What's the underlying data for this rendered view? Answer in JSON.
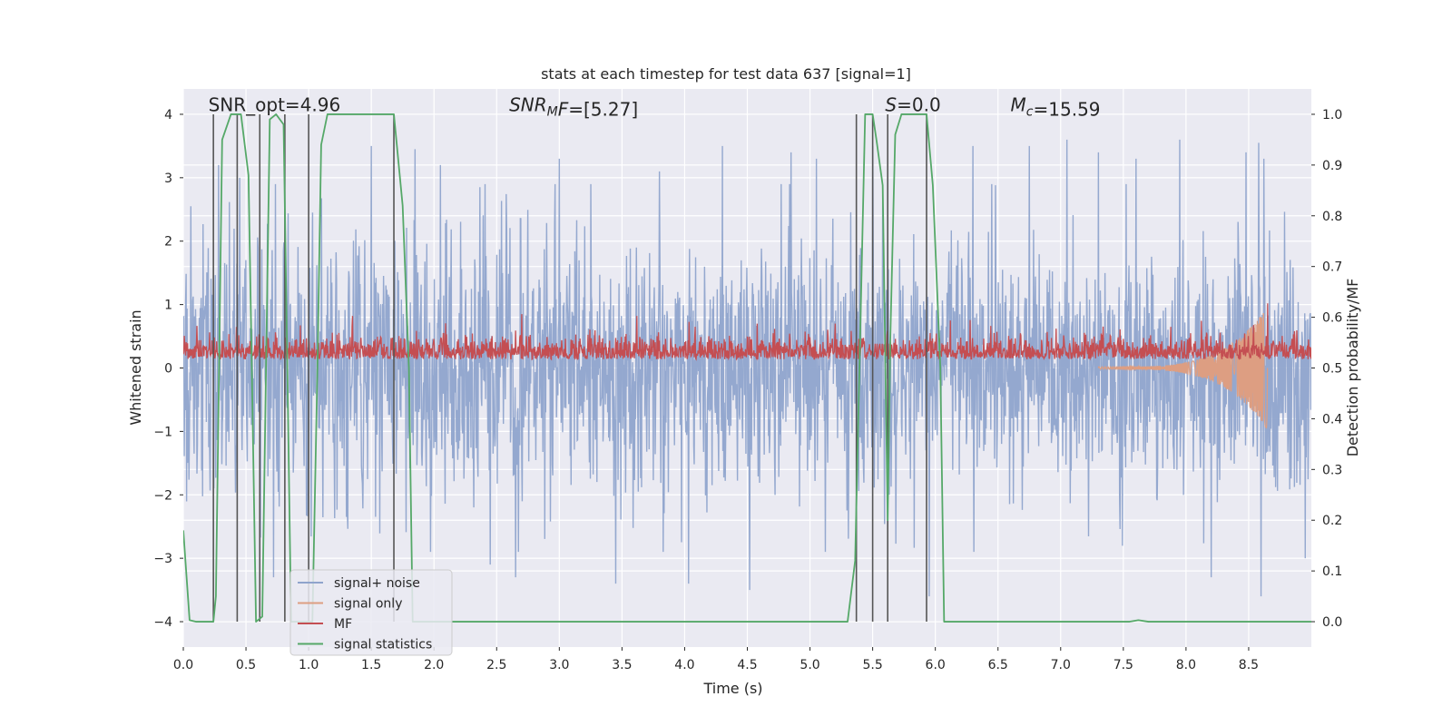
{
  "chart_data": {
    "type": "line",
    "title": "stats at each timestep for test data 637 [signal=1]",
    "xlabel": "Time (s)",
    "ylabel": "Whitened strain",
    "y2label": "Detection probability/MF",
    "xlim": [
      0.0,
      9.0
    ],
    "ylim": [
      -4.4,
      4.4
    ],
    "y2lim": [
      -0.05,
      1.05
    ],
    "xticks": [
      0.0,
      0.5,
      1.0,
      1.5,
      2.0,
      2.5,
      3.0,
      3.5,
      4.0,
      4.5,
      5.0,
      5.5,
      6.0,
      6.5,
      7.0,
      7.5,
      8.0,
      8.5
    ],
    "xtick_labels": [
      "0.0",
      "0.5",
      "1.0",
      "1.5",
      "2.0",
      "2.5",
      "3.0",
      "3.5",
      "4.0",
      "4.5",
      "5.0",
      "5.5",
      "6.0",
      "6.5",
      "7.0",
      "7.5",
      "8.0",
      "8.5"
    ],
    "yticks": [
      -4,
      -3,
      -2,
      -1,
      0,
      1,
      2,
      3,
      4
    ],
    "ytick_labels": [
      "−4",
      "−3",
      "−2",
      "−1",
      "0",
      "1",
      "2",
      "3",
      "4"
    ],
    "y2ticks": [
      0.0,
      0.1,
      0.2,
      0.3,
      0.4,
      0.5,
      0.6,
      0.7,
      0.8,
      0.9,
      1.0
    ],
    "y2tick_labels": [
      "0.0",
      "0.1",
      "0.2",
      "0.3",
      "0.4",
      "0.5",
      "0.6",
      "0.7",
      "0.8",
      "0.9",
      "1.0"
    ],
    "grid": true,
    "legend_position": "lower-left",
    "annotations": [
      {
        "text": "SNR_opt=4.96",
        "x": 0.2,
        "y": 4.05,
        "italic_prefix": ""
      },
      {
        "text": "=[5.27]",
        "x": 2.6,
        "y": 4.05,
        "italic_prefix": "SNR",
        "sub": "M",
        "italic_suffix": "F"
      },
      {
        "text": "=0.0",
        "x": 5.6,
        "y": 4.05,
        "italic_prefix": "S"
      },
      {
        "text": "=15.59",
        "x": 6.6,
        "y": 4.05,
        "italic_prefix": "M",
        "sub": "c"
      }
    ],
    "series": [
      {
        "name": "signal+ noise",
        "color": "#8fa4cc",
        "axis": "left",
        "kind": "noise",
        "sigma": 1.0,
        "peaks": [
          {
            "x": 0.06,
            "y": 2.55
          },
          {
            "x": 0.28,
            "y": 3.2
          },
          {
            "x": 0.45,
            "y": 3.0
          },
          {
            "x": 0.72,
            "y": -3.3
          },
          {
            "x": 1.03,
            "y": 2.45
          },
          {
            "x": 1.5,
            "y": 3.5
          },
          {
            "x": 1.85,
            "y": 3.45
          },
          {
            "x": 2.05,
            "y": 3.2
          },
          {
            "x": 2.45,
            "y": -3.1
          },
          {
            "x": 2.65,
            "y": -3.3
          },
          {
            "x": 3.0,
            "y": 3.3
          },
          {
            "x": 3.45,
            "y": -3.4
          },
          {
            "x": 3.8,
            "y": 3.1
          },
          {
            "x": 4.03,
            "y": -3.4
          },
          {
            "x": 4.3,
            "y": 3.5
          },
          {
            "x": 4.52,
            "y": -3.5
          },
          {
            "x": 4.85,
            "y": 3.4
          },
          {
            "x": 5.05,
            "y": 3.3
          },
          {
            "x": 5.5,
            "y": 3.5
          },
          {
            "x": 5.95,
            "y": -3.6
          },
          {
            "x": 6.3,
            "y": 3.5
          },
          {
            "x": 6.75,
            "y": 3.5
          },
          {
            "x": 7.05,
            "y": 3.6
          },
          {
            "x": 7.3,
            "y": 3.4
          },
          {
            "x": 7.6,
            "y": 3.3
          },
          {
            "x": 7.95,
            "y": 3.6
          },
          {
            "x": 8.2,
            "y": -3.3
          },
          {
            "x": 8.48,
            "y": 3.4
          },
          {
            "x": 8.58,
            "y": 3.55
          },
          {
            "x": 8.6,
            "y": -3.6
          },
          {
            "x": 8.62,
            "y": 3.3
          },
          {
            "x": 8.95,
            "y": -3.0
          }
        ]
      },
      {
        "name": "signal only",
        "color": "#dd9e82",
        "axis": "left",
        "kind": "chirp",
        "x_start": 7.3,
        "x_end": 8.65,
        "peak_amplitude": 0.95
      },
      {
        "name": "MF",
        "color": "#c44e52",
        "axis": "left",
        "kind": "band",
        "baseline": 0.2,
        "spread": 0.18,
        "peaks": [
          {
            "x": 1.35,
            "y": 0.82
          },
          {
            "x": 2.7,
            "y": 0.85
          },
          {
            "x": 3.62,
            "y": 0.82
          },
          {
            "x": 4.58,
            "y": 0.7
          },
          {
            "x": 5.2,
            "y": 0.7
          },
          {
            "x": 6.12,
            "y": 0.75
          },
          {
            "x": 8.65,
            "y": 1.02
          }
        ]
      },
      {
        "name": "signal statistics",
        "color": "#55a868",
        "axis": "right",
        "x": [
          0.0,
          0.05,
          0.1,
          0.24,
          0.26,
          0.31,
          0.38,
          0.46,
          0.52,
          0.55,
          0.58,
          0.63,
          0.66,
          0.69,
          0.74,
          0.8,
          0.83,
          0.86,
          1.03,
          1.07,
          1.1,
          1.15,
          1.6,
          1.68,
          1.75,
          1.8,
          1.83,
          4.0,
          4.5,
          5.3,
          5.36,
          5.4,
          5.44,
          5.5,
          5.53,
          5.58,
          5.62,
          5.64,
          5.68,
          5.73,
          5.93,
          5.98,
          6.04,
          6.07,
          6.2,
          7.55,
          7.62,
          7.7,
          7.8,
          9.0
        ],
        "y": [
          0.18,
          0.003,
          0.0,
          0.0,
          0.05,
          0.95,
          1.0,
          1.0,
          0.88,
          0.45,
          0.0,
          0.01,
          0.5,
          0.99,
          1.0,
          0.98,
          0.5,
          0.0,
          0.0,
          0.5,
          0.94,
          1.0,
          1.0,
          1.0,
          0.82,
          0.5,
          0.0,
          0.0,
          0.0,
          0.0,
          0.12,
          0.56,
          1.0,
          1.0,
          0.95,
          0.86,
          0.2,
          0.55,
          0.96,
          1.0,
          1.0,
          0.86,
          0.5,
          0.0,
          0.0,
          0.0,
          0.003,
          0.0,
          0.0,
          0.0
        ]
      }
    ],
    "vertical_lines": {
      "color": "#555555",
      "axis": "right",
      "y_top": 1.0,
      "y_bottom": 0.0,
      "x": [
        0.24,
        0.43,
        0.61,
        0.81,
        1.0,
        1.68,
        5.37,
        5.5,
        5.62,
        5.93
      ]
    }
  }
}
